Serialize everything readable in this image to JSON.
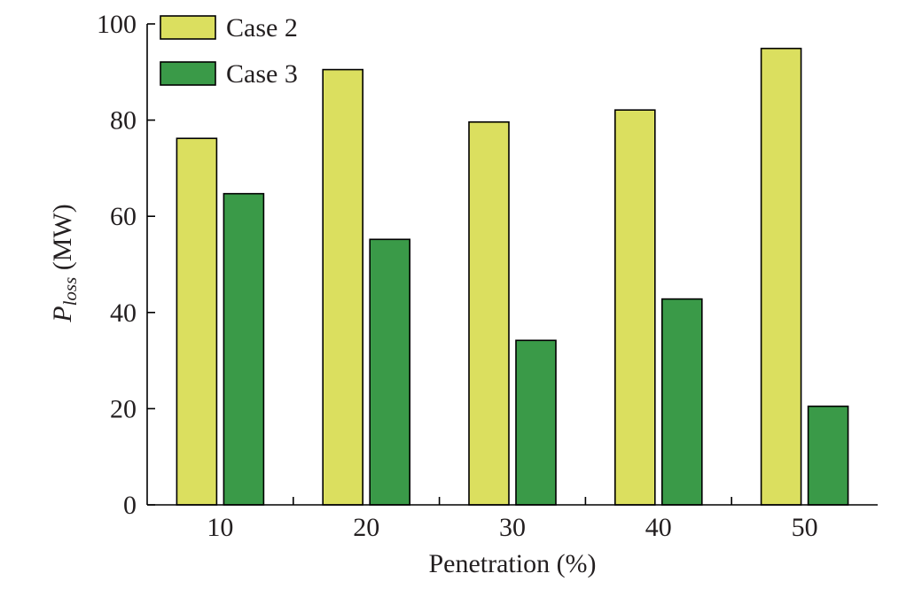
{
  "chart_data": {
    "type": "bar",
    "categories": [
      "10",
      "20",
      "30",
      "40",
      "50"
    ],
    "series": [
      {
        "name": "Case 2",
        "color": "#dbdf5f",
        "values": [
          76.2,
          90.5,
          79.6,
          82.1,
          94.9
        ]
      },
      {
        "name": "Case 3",
        "color": "#3a9a48",
        "values": [
          64.7,
          55.2,
          34.2,
          42.8,
          20.5
        ]
      }
    ],
    "xlabel": "Penetration (%)",
    "ylabel_main": "P",
    "ylabel_sub": "loss",
    "ylabel_unit": " (MW)",
    "ylim": [
      0,
      100
    ],
    "yticks": [
      0,
      20,
      40,
      60,
      80,
      100
    ],
    "legend_position": "top-left",
    "grid": false
  }
}
